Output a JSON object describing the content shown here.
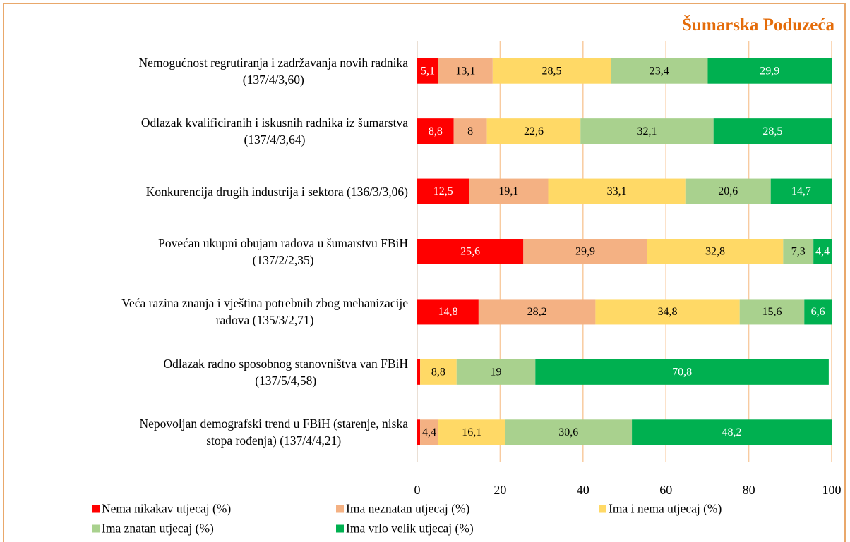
{
  "chart_data": {
    "type": "stacked-barh",
    "title": "Šumarska Poduzeća",
    "categories": [
      "Nemogućnost regrutiranja i zadržavanja novih radnika\n(137/4/3,60)",
      "Odlazak kvalificiranih i iskusnih radnika iz šumarstva\n(137/4/3,64)",
      "Konkurencija drugih industrija i sektora (136/3/3,06)",
      "Povećan ukupni obujam radova u šumarstvu FBiH\n(137/2/2,35)",
      "Veća razina znanja i vještina potrebnih zbog mehanizacije\nradova (135/3/2,71)",
      "Odlazak radno sposobnog stanovništva van FBiH\n(137/5/4,58)",
      "Nepovoljan demografski trend u FBiH (starenje, niska\nstopa rođenja) (137/4/4,21)"
    ],
    "series": [
      {
        "name": "Nema nikakav utjecaj (%)",
        "color": "#ff0000",
        "label_color": "#ffffff",
        "values": [
          5.1,
          8.8,
          12.5,
          25.6,
          14.8,
          0.7,
          0.7
        ],
        "value_labels": [
          "5,1",
          "8,8",
          "12,5",
          "25,6",
          "14,8",
          null,
          null
        ]
      },
      {
        "name": "Ima neznatan utjecaj (%)",
        "color": "#f4b183",
        "label_color": "#000000",
        "values": [
          13.1,
          8,
          19.1,
          29.9,
          28.2,
          0,
          4.4
        ],
        "value_labels": [
          "13,1",
          "8",
          "19,1",
          "29,9",
          "28,2",
          null,
          "4,4"
        ]
      },
      {
        "name": "Ima i nema utjecaj (%)",
        "color": "#ffd966",
        "label_color": "#000000",
        "values": [
          28.5,
          22.6,
          33.1,
          32.8,
          34.8,
          8.8,
          16.1
        ],
        "value_labels": [
          "28,5",
          "22,6",
          "33,1",
          "32,8",
          "34,8",
          "8,8",
          "16,1"
        ]
      },
      {
        "name": "Ima znatan utjecaj (%)",
        "color": "#a9d18e",
        "label_color": "#000000",
        "values": [
          23.4,
          32.1,
          20.6,
          7.3,
          15.6,
          19,
          30.6
        ],
        "value_labels": [
          "23,4",
          "32,1",
          "20,6",
          "7,3",
          "15,6",
          "19",
          "30,6"
        ]
      },
      {
        "name": "Ima vrlo velik utjecaj (%)",
        "color": "#00b050",
        "label_color": "#ffffff",
        "values": [
          29.9,
          28.5,
          14.7,
          4.4,
          6.6,
          70.8,
          48.2
        ],
        "value_labels": [
          "29,9",
          "28,5",
          "14,7",
          "4,4",
          "6,6",
          "70,8",
          "48,2"
        ]
      }
    ],
    "xlim": [
      0,
      100
    ],
    "xticks": [
      0,
      20,
      40,
      60,
      80,
      100
    ],
    "grid": true,
    "grid_color": "#f8cba0"
  }
}
